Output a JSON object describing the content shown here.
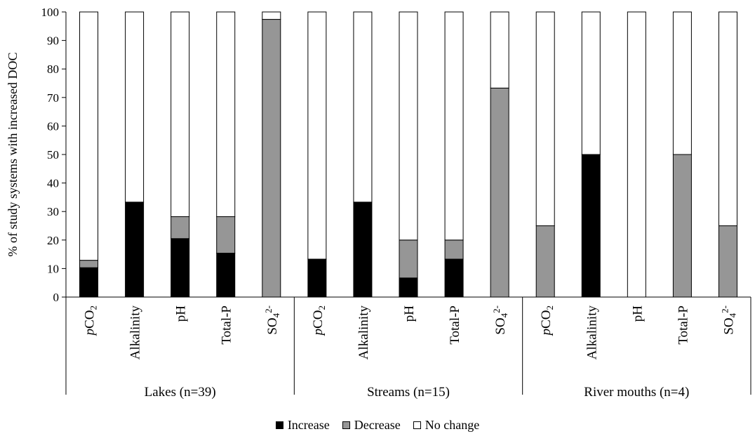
{
  "chart_data": {
    "type": "bar",
    "stacked": true,
    "ylabel": "% of study systems with increased DOC",
    "ylim": [
      0,
      100
    ],
    "yticks": [
      0,
      10,
      20,
      30,
      40,
      50,
      60,
      70,
      80,
      90,
      100
    ],
    "grid": false,
    "legend_position": "bottom",
    "groups": [
      {
        "label": "Lakes (n=39)",
        "categories": [
          {
            "label": "pCO2",
            "increase": 10.3,
            "decrease": 2.6,
            "no_change": 87.1
          },
          {
            "label": "Alkalinity",
            "increase": 33.3,
            "decrease": 0,
            "no_change": 66.7
          },
          {
            "label": "pH",
            "increase": 20.5,
            "decrease": 7.7,
            "no_change": 71.8
          },
          {
            "label": "Total-P",
            "increase": 15.4,
            "decrease": 12.8,
            "no_change": 71.8
          },
          {
            "label": "SO4 2-",
            "increase": 0,
            "decrease": 97.4,
            "no_change": 2.6
          }
        ]
      },
      {
        "label": "Streams (n=15)",
        "categories": [
          {
            "label": "pCO2",
            "increase": 13.3,
            "decrease": 0,
            "no_change": 86.7
          },
          {
            "label": "Alkalinity",
            "increase": 33.3,
            "decrease": 0,
            "no_change": 66.7
          },
          {
            "label": "pH",
            "increase": 6.7,
            "decrease": 13.3,
            "no_change": 80.0
          },
          {
            "label": "Total-P",
            "increase": 13.3,
            "decrease": 6.7,
            "no_change": 80.0
          },
          {
            "label": "SO4 2-",
            "increase": 0,
            "decrease": 73.3,
            "no_change": 26.7
          }
        ]
      },
      {
        "label": "River mouths (n=4)",
        "categories": [
          {
            "label": "pCO2",
            "increase": 0,
            "decrease": 25,
            "no_change": 75
          },
          {
            "label": "Alkalinity",
            "increase": 50,
            "decrease": 0,
            "no_change": 50
          },
          {
            "label": "pH",
            "increase": 0,
            "decrease": 0,
            "no_change": 100
          },
          {
            "label": "Total-P",
            "increase": 0,
            "decrease": 50,
            "no_change": 50
          },
          {
            "label": "SO4 2-",
            "increase": 0,
            "decrease": 25,
            "no_change": 75
          }
        ]
      }
    ],
    "series": [
      {
        "key": "increase",
        "name": "Increase",
        "color": "#000000"
      },
      {
        "key": "decrease",
        "name": "Decrease",
        "color": "#969696"
      },
      {
        "key": "no_change",
        "name": "No change",
        "color": "#ffffff"
      }
    ]
  }
}
